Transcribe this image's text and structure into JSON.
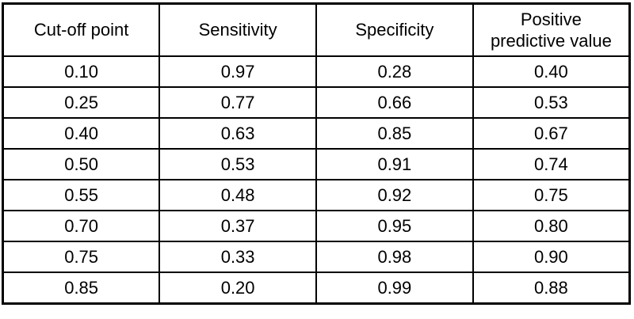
{
  "chart_data": {
    "type": "table",
    "columns": [
      "Cut-off point",
      "Sensitivity",
      "Specificity",
      "Positive\npredictive value"
    ],
    "rows": [
      [
        "0.10",
        "0.97",
        "0.28",
        "0.40"
      ],
      [
        "0.25",
        "0.77",
        "0.66",
        "0.53"
      ],
      [
        "0.40",
        "0.63",
        "0.85",
        "0.67"
      ],
      [
        "0.50",
        "0.53",
        "0.91",
        "0.74"
      ],
      [
        "0.55",
        "0.48",
        "0.92",
        "0.75"
      ],
      [
        "0.70",
        "0.37",
        "0.95",
        "0.80"
      ],
      [
        "0.75",
        "0.33",
        "0.98",
        "0.90"
      ],
      [
        "0.85",
        "0.20",
        "0.99",
        "0.88"
      ]
    ],
    "title": "",
    "layout": {
      "grid": "on",
      "header_rows": 1,
      "column_count": 4,
      "row_count": 8
    },
    "colors": {
      "border": "#000000",
      "text": "#000000",
      "background": "#ffffff"
    }
  }
}
